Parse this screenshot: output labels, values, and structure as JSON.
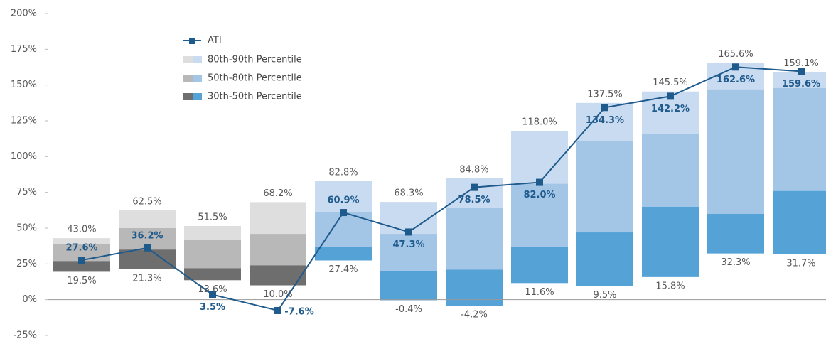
{
  "chart_data": {
    "type": "floating_bar_line",
    "categories": [
      null,
      null,
      null,
      null,
      null,
      null,
      null,
      null,
      null,
      null,
      null,
      null
    ],
    "ylim": [
      -25,
      200
    ],
    "yticks": [
      {
        "value": -25,
        "label": "-25%"
      },
      {
        "value": 0,
        "label": "0%"
      },
      {
        "value": 25,
        "label": "25%"
      },
      {
        "value": 50,
        "label": "50%"
      },
      {
        "value": 75,
        "label": "75%"
      },
      {
        "value": 100,
        "label": "100%"
      },
      {
        "value": 125,
        "label": "125%"
      },
      {
        "value": 150,
        "label": "150%"
      },
      {
        "value": 175,
        "label": "175%"
      },
      {
        "value": 200,
        "label": "200%"
      }
    ],
    "grid": false,
    "palette_index": [
      0,
      0,
      0,
      0,
      1,
      1,
      1,
      1,
      1,
      1,
      1,
      1
    ],
    "percentiles": {
      "p30": [
        19.5,
        21.3,
        13.6,
        10.0,
        27.4,
        -0.4,
        -4.2,
        11.6,
        9.5,
        15.8,
        32.3,
        31.7
      ],
      "p50": [
        27,
        35,
        22,
        24,
        37,
        20,
        21,
        37,
        47,
        65,
        60,
        76
      ],
      "p80": [
        39,
        50,
        42,
        46,
        61,
        46,
        64,
        81,
        111,
        116,
        147,
        148
      ],
      "p90": [
        43.0,
        62.5,
        51.5,
        68.2,
        82.8,
        68.3,
        84.8,
        118.0,
        137.5,
        145.5,
        165.6,
        159.1
      ],
      "p30_labels": [
        "19.5%",
        "21.3%",
        "13.6%",
        "10.0%",
        "27.4%",
        "-0.4%",
        "-4.2%",
        "11.6%",
        "9.5%",
        "15.8%",
        "32.3%",
        "31.7%"
      ],
      "p90_labels": [
        "43.0%",
        "62.5%",
        "51.5%",
        "68.2%",
        "82.8%",
        "68.3%",
        "84.8%",
        "118.0%",
        "137.5%",
        "145.5%",
        "165.6%",
        "159.1%"
      ]
    },
    "series": [
      {
        "name": "ATI",
        "color": "#1f5a8c",
        "values": [
          27.6,
          36.2,
          3.5,
          -7.6,
          60.9,
          47.3,
          78.5,
          82.0,
          134.3,
          142.2,
          162.6,
          159.6
        ],
        "value_labels": [
          "27.6%",
          "36.2%",
          "3.5%",
          "-7.6%",
          "60.9%",
          "47.3%",
          "78.5%",
          "82.0%",
          "134.3%",
          "142.2%",
          "162.6%",
          "159.6%"
        ]
      },
      {
        "name": "80th-90th Percentile",
        "colors": [
          "#dedede",
          "#c8dbf0"
        ],
        "low": "p80",
        "high": "p90"
      },
      {
        "name": "50th-80th Percentile",
        "colors": [
          "#b8b8b8",
          "#a3c6e7"
        ],
        "low": "p50",
        "high": "p80"
      },
      {
        "name": "30th-50th Percentile",
        "colors": [
          "#6e6e6e",
          "#55a2d7"
        ],
        "low": "p30",
        "high": "p50"
      }
    ]
  }
}
